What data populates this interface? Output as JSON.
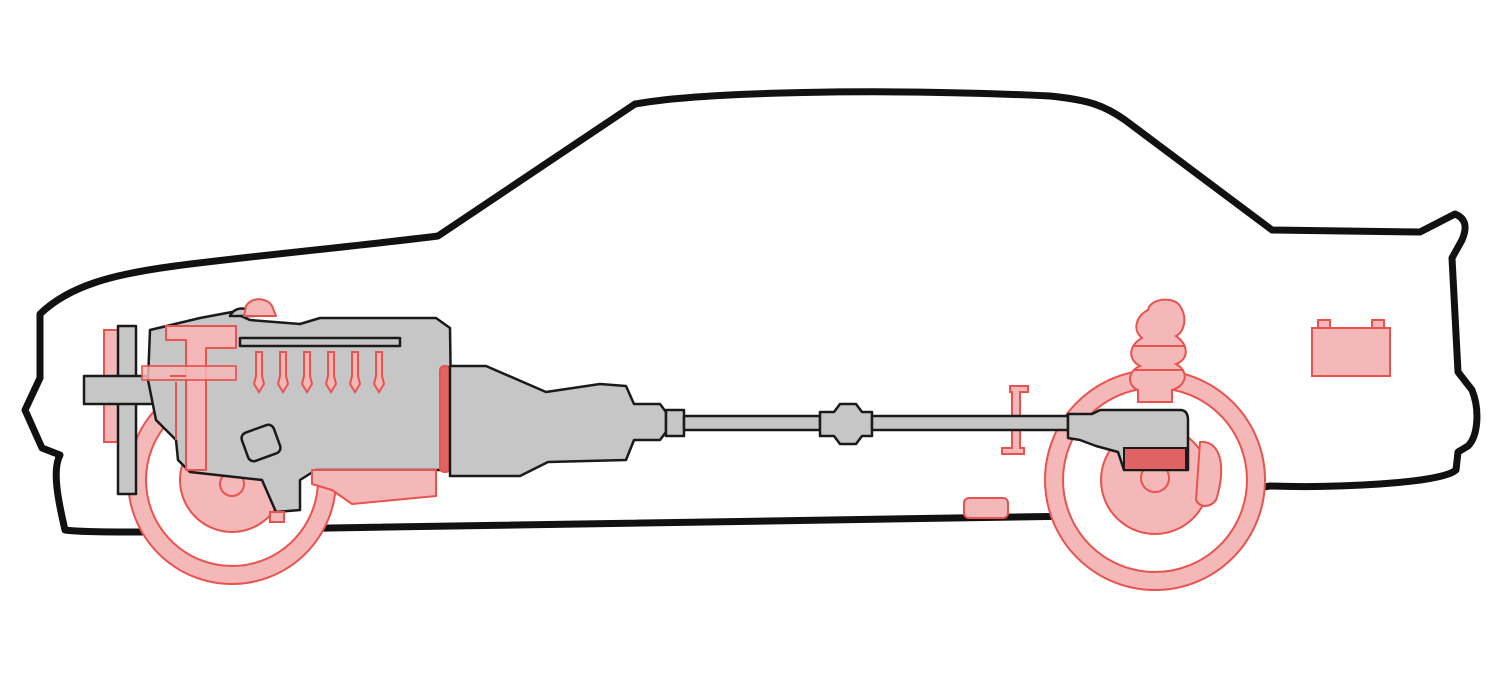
{
  "diagram": {
    "colors": {
      "background": "#ffffff",
      "outline": "#111111",
      "mechanical_fill": "#c6c6c6",
      "mechanical_stroke": "#1a1a1a",
      "highlight_fill": "#f5b8b8",
      "highlight_stroke": "#e8534f",
      "highlight_dark": "#e06262"
    },
    "components": [
      {
        "name": "car-body-outline",
        "style": "outline"
      },
      {
        "name": "engine",
        "style": "mechanical"
      },
      {
        "name": "transmission",
        "style": "mechanical"
      },
      {
        "name": "driveshaft",
        "style": "mechanical"
      },
      {
        "name": "rear-differential",
        "style": "mechanical"
      },
      {
        "name": "front-wheel",
        "style": "highlighted"
      },
      {
        "name": "rear-wheel",
        "style": "highlighted"
      },
      {
        "name": "fuel-injectors",
        "style": "highlighted",
        "count": 6
      },
      {
        "name": "rear-spring",
        "style": "highlighted"
      },
      {
        "name": "battery",
        "style": "highlighted"
      },
      {
        "name": "oil-pan",
        "style": "highlighted"
      },
      {
        "name": "radiator",
        "style": "highlighted"
      }
    ]
  }
}
